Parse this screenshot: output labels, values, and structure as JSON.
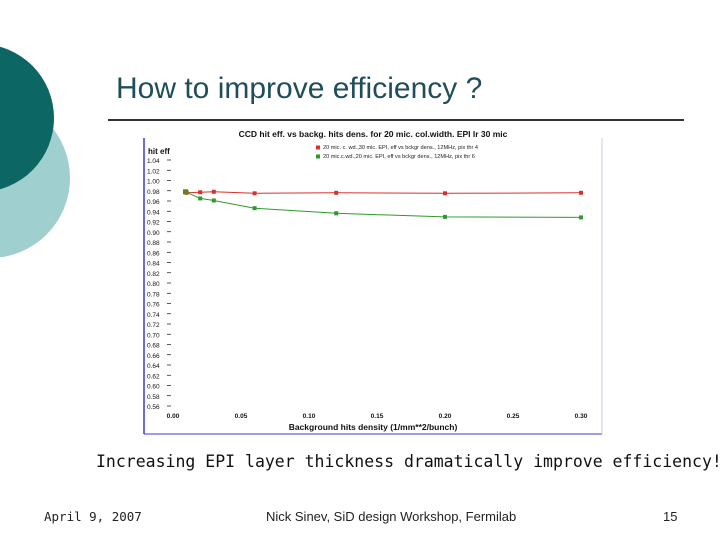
{
  "slide": {
    "title": "How to improve efficiency ?",
    "caption": "Increasing EPI layer thickness dramatically improve efficiency!",
    "footer": {
      "date": "April 9, 2007",
      "center": "Nick Sinev,  SiD design Workshop, Fermilab",
      "page": "15"
    }
  },
  "colors": {
    "teal_dark": "#0c6663",
    "teal_light": "#9fcfcf",
    "series_red": "#d83030",
    "series_green": "#2e9a2e"
  },
  "chart_data": {
    "type": "line",
    "title": "CCD hit eff. vs backg. hits dens. for 20 mic. col.width. EPI lr 30 mic",
    "xlabel": "Background hits density (1/mm**2/bunch)",
    "ylabel": "hit eff",
    "xlim": [
      0.0,
      0.3
    ],
    "ylim": [
      0.56,
      1.04
    ],
    "x_ticks": [
      "0.00",
      "0.05",
      "0.10",
      "0.15",
      "0.20",
      "0.25",
      "0.30"
    ],
    "y_ticks": [
      "1.04",
      "1.02",
      "1.00",
      "0.98",
      "0.96",
      "0.94",
      "0.92",
      "0.90",
      "0.88",
      "0.86",
      "0.84",
      "0.82",
      "0.80",
      "0.78",
      "0.76",
      "0.74",
      "0.72",
      "0.70",
      "0.68",
      "0.66",
      "0.64",
      "0.62",
      "0.60",
      "0.58",
      "0.56"
    ],
    "legend_position": "top-right",
    "series": [
      {
        "name": "20 mic. c. wd.,30 mic. EPI, eff vs bckgr dens., 12MHz, pix thr 4",
        "color": "#d83030",
        "x": [
          0.01,
          0.02,
          0.03,
          0.06,
          0.12,
          0.2,
          0.3
        ],
        "y": [
          0.976,
          0.977,
          0.978,
          0.975,
          0.976,
          0.975,
          0.976
        ]
      },
      {
        "name": "20 mic.c.wd.,20 mic. EPI, eff vs bckgr dens., 12MHz, pix thr 6",
        "color": "#2e9a2e",
        "x": [
          0.01,
          0.02,
          0.03,
          0.06,
          0.12,
          0.2,
          0.3
        ],
        "y": [
          0.977,
          0.965,
          0.961,
          0.946,
          0.936,
          0.929,
          0.928
        ]
      }
    ]
  }
}
